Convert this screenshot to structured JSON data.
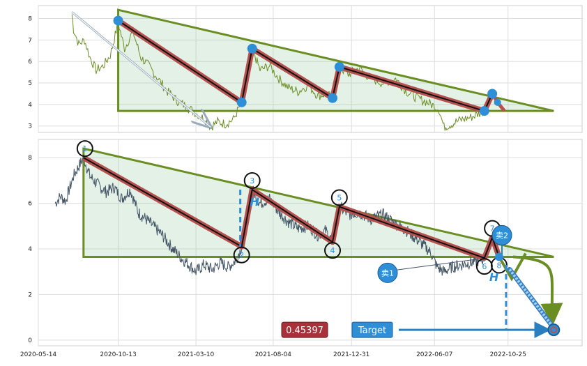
{
  "chart_data": [
    {
      "type": "line",
      "panel": "top",
      "y_ticks": [
        "3",
        "4",
        "5",
        "6",
        "7",
        "8"
      ],
      "ylim": [
        2.7,
        8.6
      ],
      "xlim": [
        "2020-05-14",
        "2023-03-15"
      ],
      "grid": true,
      "price_series_color": "#6b8e23",
      "wave_points": [
        {
          "date": "2020-10-13",
          "value": 7.9
        },
        {
          "date": "2021-06-05",
          "value": 4.1
        },
        {
          "date": "2021-06-25",
          "value": 6.6
        },
        {
          "date": "2021-11-25",
          "value": 4.3
        },
        {
          "date": "2021-12-08",
          "value": 5.75
        },
        {
          "date": "2022-09-10",
          "value": 3.7
        },
        {
          "date": "2022-09-25",
          "value": 4.5
        },
        {
          "date": "2022-10-05",
          "value": 4.1
        },
        {
          "date": "2022-10-18",
          "value": 3.7
        }
      ],
      "triangle": {
        "apex": {
          "date": "2020-10-13",
          "value": 8.4
        },
        "base_left": {
          "date": "2020-10-13",
          "value": 3.7
        },
        "base_right": {
          "date": "2023-01-20",
          "value": 3.7
        }
      },
      "diagonal_arrow": {
        "from": {
          "date": "2020-07-17",
          "value": 8.3
        },
        "to": {
          "date": "2021-04-07",
          "value": 2.95
        }
      },
      "price_anchors": [
        [
          "2020-07-17",
          8.2
        ],
        [
          "2020-07-20",
          7.5
        ],
        [
          "2020-07-30",
          6.8
        ],
        [
          "2020-08-10",
          7.0
        ],
        [
          "2020-08-20",
          6.2
        ],
        [
          "2020-09-01",
          5.6
        ],
        [
          "2020-09-15",
          5.8
        ],
        [
          "2020-09-28",
          6.3
        ],
        [
          "2020-10-13",
          7.8
        ],
        [
          "2020-10-25",
          6.6
        ],
        [
          "2020-11-10",
          7.4
        ],
        [
          "2020-11-25",
          6.2
        ],
        [
          "2020-12-10",
          5.8
        ],
        [
          "2020-12-28",
          5.2
        ],
        [
          "2021-01-15",
          4.6
        ],
        [
          "2021-02-01",
          4.2
        ],
        [
          "2021-02-20",
          3.9
        ],
        [
          "2021-03-10",
          3.6
        ],
        [
          "2021-03-28",
          3.3
        ],
        [
          "2021-04-07",
          2.95
        ],
        [
          "2021-04-20",
          3.2
        ],
        [
          "2021-05-05",
          3.1
        ],
        [
          "2021-05-20",
          3.3
        ],
        [
          "2021-06-05",
          4.1
        ],
        [
          "2021-06-15",
          5.2
        ],
        [
          "2021-06-25",
          6.6
        ],
        [
          "2021-07-10",
          5.6
        ],
        [
          "2021-07-28",
          5.8
        ],
        [
          "2021-08-15",
          5.2
        ],
        [
          "2021-09-01",
          4.8
        ],
        [
          "2021-09-20",
          4.6
        ],
        [
          "2021-10-10",
          4.9
        ],
        [
          "2021-10-28",
          4.4
        ],
        [
          "2021-11-12",
          4.5
        ],
        [
          "2021-11-25",
          4.3
        ],
        [
          "2021-12-08",
          5.75
        ],
        [
          "2021-12-25",
          5.4
        ],
        [
          "2022-01-15",
          5.7
        ],
        [
          "2022-02-05",
          5.2
        ],
        [
          "2022-03-01",
          5.0
        ],
        [
          "2022-03-25",
          5.2
        ],
        [
          "2022-04-15",
          4.6
        ],
        [
          "2022-05-05",
          4.3
        ],
        [
          "2022-05-25",
          4.1
        ],
        [
          "2022-06-15",
          3.8
        ],
        [
          "2022-06-25",
          2.95
        ],
        [
          "2022-07-10",
          3.1
        ],
        [
          "2022-07-28",
          3.3
        ],
        [
          "2022-08-15",
          3.4
        ],
        [
          "2022-09-01",
          3.6
        ],
        [
          "2022-09-10",
          3.7
        ]
      ]
    },
    {
      "type": "line",
      "panel": "bottom",
      "x_ticks": [
        "2020-05-14",
        "2020-10-13",
        "2021-03-10",
        "2021-08-04",
        "2021-12-31",
        "2022-06-07",
        "2022-10-25"
      ],
      "y_ticks": [
        "0",
        "2",
        "4",
        "6",
        "8"
      ],
      "ylim": [
        -0.25,
        8.8
      ],
      "xlim": [
        "2020-05-14",
        "2023-03-15"
      ],
      "grid": true,
      "price_series_color": "#445566",
      "wave_points": [
        {
          "label": "1",
          "date": "2020-08-08",
          "value": 8.0
        },
        {
          "label": "2",
          "date": "2021-06-05",
          "value": 4.1
        },
        {
          "label": "3",
          "date": "2021-06-25",
          "value": 6.6
        },
        {
          "label": "4",
          "date": "2021-11-25",
          "value": 4.3
        },
        {
          "label": "5",
          "date": "2021-12-08",
          "value": 5.85
        },
        {
          "label": "6",
          "date": "2022-09-10",
          "value": 3.6
        },
        {
          "label": "7",
          "date": "2022-09-25",
          "value": 4.5
        },
        {
          "label": "8",
          "date": "2022-10-08",
          "value": 3.65
        }
      ],
      "triangle": {
        "apex": {
          "date": "2020-08-08",
          "value": 8.4
        },
        "base_left": {
          "date": "2020-08-08",
          "value": 3.65
        },
        "base_right": {
          "date": "2023-01-20",
          "value": 3.65
        }
      },
      "h_marker_label": "H",
      "sell_labels": [
        "卖1",
        "卖2"
      ],
      "target_label": "Target",
      "target_value": "0.45397",
      "target_point": {
        "date": "2023-01-20",
        "value": 0.45
      },
      "price_anchors": [
        [
          "2020-06-15",
          6.0
        ],
        [
          "2020-06-25",
          6.3
        ],
        [
          "2020-07-05",
          6.1
        ],
        [
          "2020-07-20",
          7.2
        ],
        [
          "2020-08-08",
          8.0
        ],
        [
          "2020-08-20",
          7.2
        ],
        [
          "2020-09-05",
          6.8
        ],
        [
          "2020-09-20",
          6.5
        ],
        [
          "2020-10-05",
          6.7
        ],
        [
          "2020-10-20",
          6.2
        ],
        [
          "2020-11-05",
          6.6
        ],
        [
          "2020-11-20",
          5.6
        ],
        [
          "2020-12-10",
          5.2
        ],
        [
          "2021-01-05",
          4.6
        ],
        [
          "2021-01-25",
          4.0
        ],
        [
          "2021-02-10",
          3.6
        ],
        [
          "2021-02-25",
          3.3
        ],
        [
          "2021-03-10",
          3.0
        ],
        [
          "2021-03-25",
          3.3
        ],
        [
          "2021-04-10",
          3.1
        ],
        [
          "2021-04-25",
          3.4
        ],
        [
          "2021-05-10",
          3.2
        ],
        [
          "2021-05-25",
          3.5
        ],
        [
          "2021-06-05",
          4.1
        ],
        [
          "2021-06-15",
          5.2
        ],
        [
          "2021-06-25",
          6.6
        ],
        [
          "2021-07-10",
          6.0
        ],
        [
          "2021-07-28",
          6.2
        ],
        [
          "2021-08-15",
          5.6
        ],
        [
          "2021-09-01",
          5.2
        ],
        [
          "2021-09-20",
          4.9
        ],
        [
          "2021-10-10",
          5.0
        ],
        [
          "2021-10-28",
          4.6
        ],
        [
          "2021-11-12",
          4.8
        ],
        [
          "2021-11-25",
          4.3
        ],
        [
          "2021-12-08",
          5.85
        ],
        [
          "2021-12-25",
          5.5
        ],
        [
          "2022-01-15",
          5.6
        ],
        [
          "2022-02-05",
          5.3
        ],
        [
          "2022-03-01",
          5.5
        ],
        [
          "2022-03-25",
          5.1
        ],
        [
          "2022-04-15",
          4.8
        ],
        [
          "2022-05-05",
          4.4
        ],
        [
          "2022-05-20",
          4.1
        ],
        [
          "2022-06-01",
          3.8
        ],
        [
          "2022-06-12",
          3.2
        ],
        [
          "2022-06-25",
          3.0
        ],
        [
          "2022-07-10",
          3.2
        ],
        [
          "2022-07-28",
          3.3
        ],
        [
          "2022-08-15",
          3.4
        ],
        [
          "2022-09-01",
          3.5
        ],
        [
          "2022-09-10",
          3.6
        ]
      ]
    }
  ]
}
